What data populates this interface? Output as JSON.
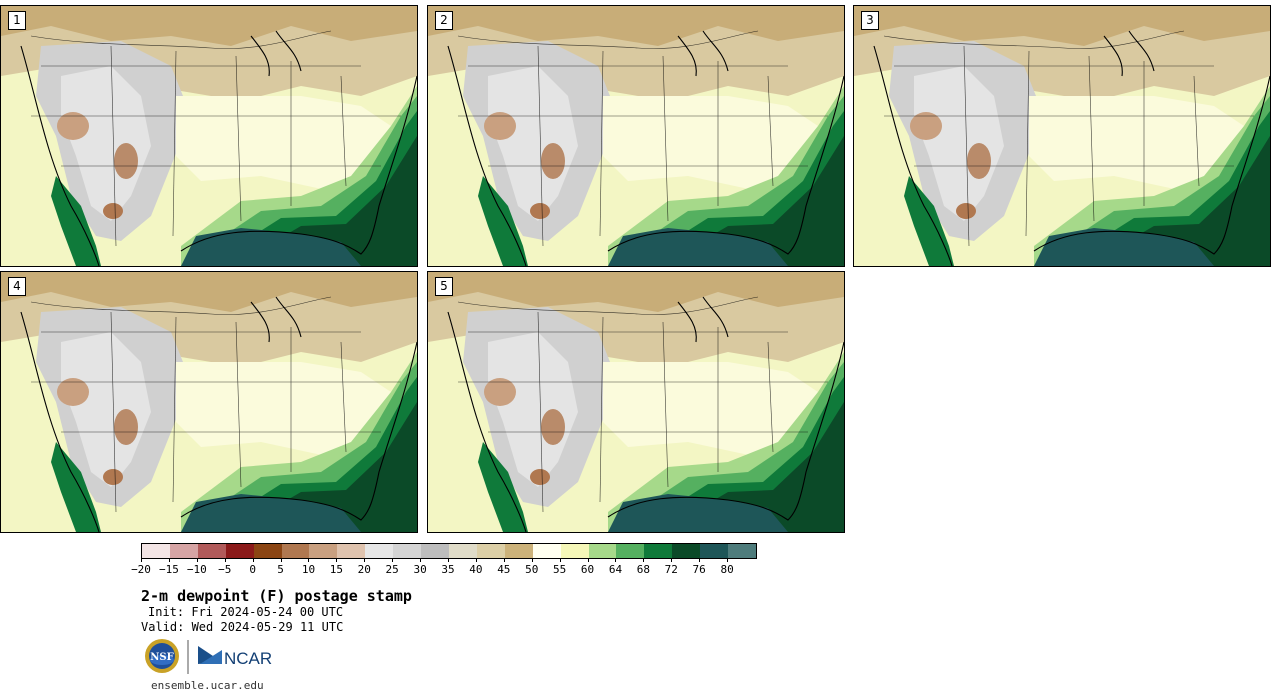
{
  "panels": [
    {
      "label": "1"
    },
    {
      "label": "2"
    },
    {
      "label": "3"
    },
    {
      "label": "4"
    },
    {
      "label": "5"
    }
  ],
  "colorbar": {
    "colors": [
      "#f3e5e5",
      "#d6a4a4",
      "#b15a5a",
      "#8b1a1a",
      "#8b4513",
      "#b07850",
      "#c9a080",
      "#dfc3ae",
      "#e6e6e6",
      "#d4d4d4",
      "#bdbdbd",
      "#e0dcc8",
      "#dccfa6",
      "#ccb27a",
      "#fffff0",
      "#f5f7b8",
      "#a6d98a",
      "#55b060",
      "#0f7a3a",
      "#0b4a28",
      "#1e5658",
      "#4e7c7c"
    ],
    "labels": [
      "−20",
      "−15",
      "−10",
      "−5",
      "0",
      "5",
      "10",
      "15",
      "20",
      "25",
      "30",
      "35",
      "40",
      "45",
      "50",
      "55",
      "60",
      "64",
      "68",
      "72",
      "76",
      "80"
    ]
  },
  "title": "2-m dewpoint (F) postage stamp",
  "init": "Init: Fri 2024-05-24 00 UTC",
  "valid": "Valid: Wed 2024-05-29 11 UTC",
  "logos": {
    "nsf": "NSF",
    "ncar": "NCAR"
  },
  "url": "ensemble.ucar.edu"
}
